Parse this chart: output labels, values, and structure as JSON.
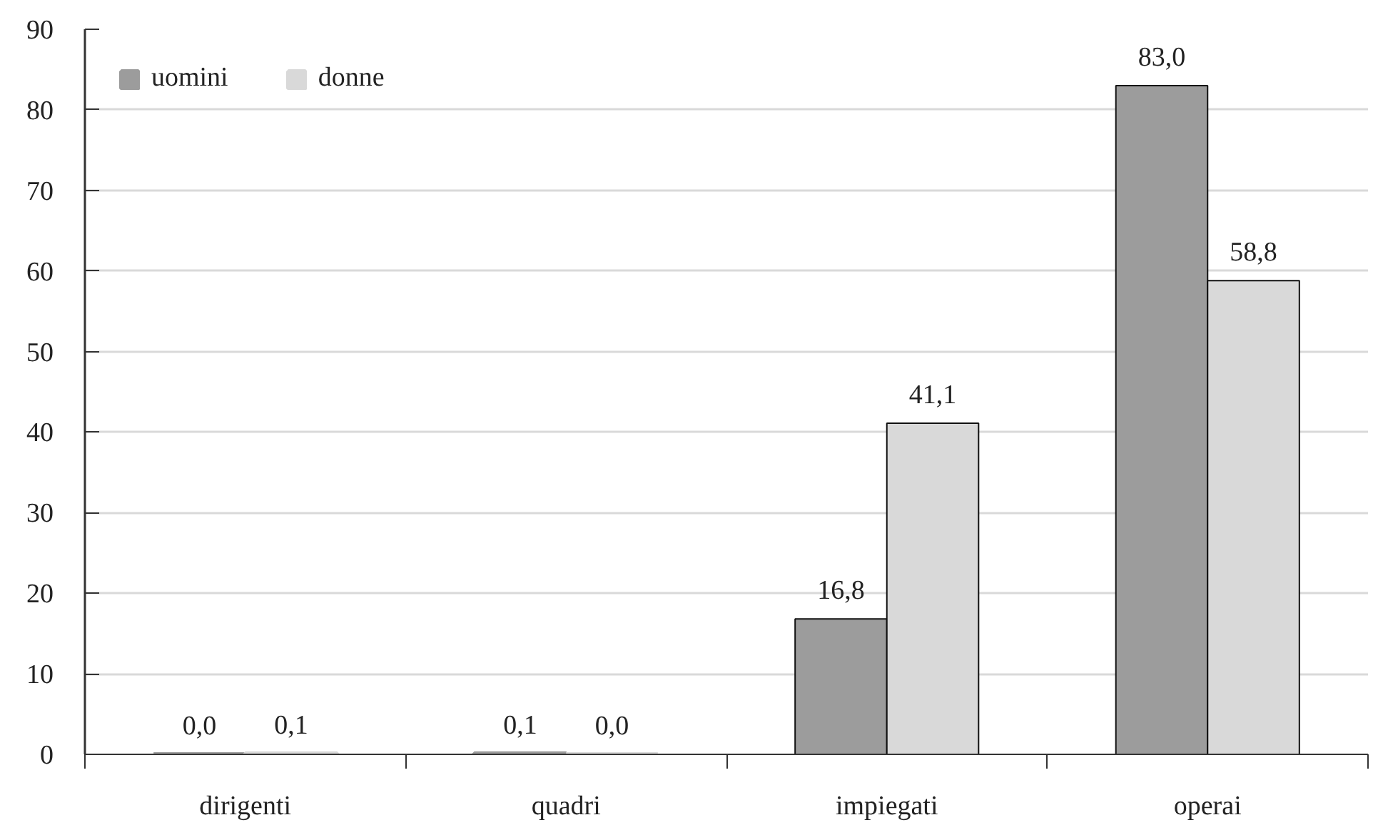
{
  "chart_data": {
    "type": "bar",
    "categories": [
      "dirigenti",
      "quadri",
      "impiegati",
      "operai"
    ],
    "series": [
      {
        "name": "uomini",
        "color": "#9c9c9c",
        "values": [
          0.0,
          0.1,
          16.8,
          83.0
        ],
        "value_labels": [
          "0,0",
          "0,1",
          "16,8",
          "83,0"
        ]
      },
      {
        "name": "donne",
        "color": "#d9d9d9",
        "values": [
          0.1,
          0.0,
          41.1,
          58.8
        ],
        "value_labels": [
          "0,1",
          "0,0",
          "41,1",
          "58,8"
        ]
      }
    ],
    "ylim": [
      0,
      90
    ],
    "yticks": [
      0,
      10,
      20,
      30,
      40,
      50,
      60,
      70,
      80,
      90
    ],
    "grid": "y",
    "legend": "top left"
  }
}
